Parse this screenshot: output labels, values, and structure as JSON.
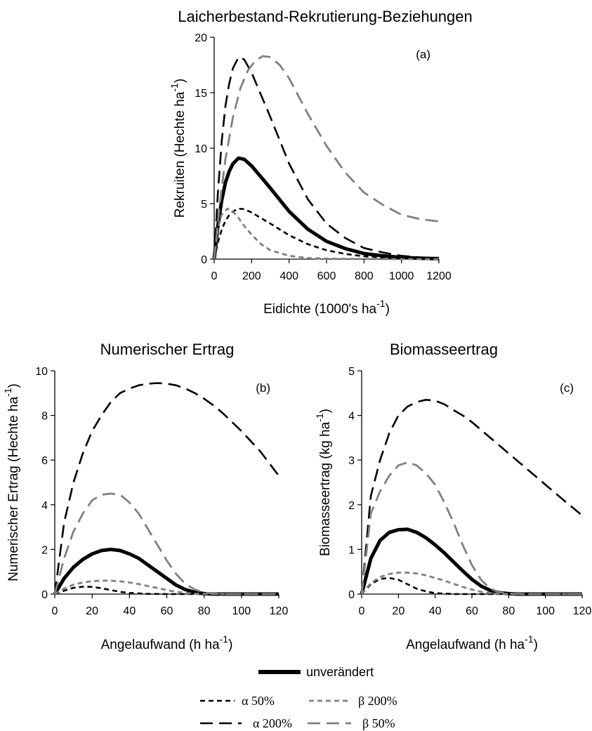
{
  "chart_data": [
    {
      "type": "line",
      "panel_label": "(a)",
      "title": "Laicherbestand-Rekrutierung-Beziehungen",
      "xlabel": "Eidichte (1000's ha",
      "xlabel_sup": "-1",
      "xlabel_end": ")",
      "ylabel": "Rekruiten (Hechte ha",
      "ylabel_sup": "-1",
      "ylabel_end": ")",
      "xlim": [
        0,
        1200
      ],
      "ylim": [
        0,
        20
      ],
      "xticks": [
        0,
        200,
        400,
        600,
        800,
        1000,
        1200
      ],
      "yticks": [
        0,
        5,
        10,
        15,
        20
      ],
      "series": [
        {
          "name": "unverändert",
          "style": "base",
          "x": [
            0,
            20,
            40,
            60,
            80,
            100,
            130,
            160,
            200,
            250,
            300,
            400,
            500,
            600,
            700,
            800,
            900,
            1000,
            1100,
            1200
          ],
          "y": [
            0,
            3.0,
            5.3,
            6.9,
            7.9,
            8.6,
            9.1,
            9.0,
            8.4,
            7.4,
            6.4,
            4.3,
            2.7,
            1.6,
            0.95,
            0.5,
            0.3,
            0.15,
            0.08,
            0.04
          ]
        },
        {
          "name": "α 50%",
          "style": "a50",
          "x": [
            0,
            20,
            40,
            60,
            80,
            100,
            130,
            160,
            200,
            250,
            300,
            400,
            500,
            600,
            700,
            800,
            900,
            1000,
            1100,
            1200
          ],
          "y": [
            0,
            1.5,
            2.65,
            3.45,
            3.95,
            4.3,
            4.55,
            4.5,
            4.2,
            3.7,
            3.2,
            2.15,
            1.35,
            0.8,
            0.47,
            0.25,
            0.15,
            0.08,
            0.04,
            0.02
          ]
        },
        {
          "name": "α 200%",
          "style": "a200",
          "x": [
            0,
            20,
            40,
            60,
            80,
            100,
            130,
            160,
            200,
            250,
            300,
            400,
            500,
            600,
            700,
            800,
            900,
            1000,
            1100,
            1200
          ],
          "y": [
            0,
            6.0,
            10.6,
            13.8,
            15.8,
            17.2,
            18.2,
            18.0,
            16.8,
            14.8,
            12.8,
            8.6,
            5.4,
            3.2,
            1.9,
            1.0,
            0.6,
            0.3,
            0.16,
            0.08
          ]
        },
        {
          "name": "β 200%",
          "style": "b200",
          "x": [
            0,
            20,
            40,
            70,
            100,
            130,
            160,
            200,
            250,
            300,
            400,
            500,
            600,
            800,
            1000,
            1200
          ],
          "y": [
            0,
            2.8,
            4.0,
            4.55,
            4.3,
            3.7,
            3.0,
            2.2,
            1.35,
            0.8,
            0.3,
            0.1,
            0.04,
            0.01,
            0,
            0
          ]
        },
        {
          "name": "β 50%",
          "style": "b50",
          "x": [
            0,
            30,
            60,
            100,
            140,
            180,
            220,
            260,
            300,
            350,
            400,
            500,
            600,
            700,
            800,
            900,
            1000,
            1100,
            1200
          ],
          "y": [
            0,
            5.0,
            9.0,
            12.8,
            15.4,
            17.0,
            17.9,
            18.3,
            18.2,
            17.5,
            16.3,
            13.1,
            10.2,
            7.8,
            6.0,
            4.9,
            4.0,
            3.6,
            3.4
          ]
        }
      ]
    },
    {
      "type": "line",
      "panel_label": "(b)",
      "title": "Numerischer Ertrag",
      "xlabel": "Angelaufwand (h ha",
      "xlabel_sup": "-1",
      "xlabel_end": ")",
      "ylabel": "Numerischer Ertrag (Hechte ha",
      "ylabel_sup": "-1",
      "ylabel_end": ")",
      "xlim": [
        0,
        120
      ],
      "ylim": [
        0,
        10
      ],
      "xticks": [
        0,
        20,
        40,
        60,
        80,
        100,
        120
      ],
      "yticks": [
        0,
        2,
        4,
        6,
        8,
        10
      ],
      "series": [
        {
          "name": "unverändert",
          "style": "base",
          "x": [
            0,
            5,
            10,
            15,
            20,
            25,
            30,
            35,
            40,
            45,
            50,
            55,
            60,
            65,
            70,
            75,
            80,
            85,
            90,
            100,
            110,
            120
          ],
          "y": [
            0,
            0.7,
            1.2,
            1.55,
            1.8,
            1.95,
            2.0,
            1.95,
            1.8,
            1.6,
            1.3,
            1.0,
            0.7,
            0.4,
            0.2,
            0.08,
            0.02,
            0,
            0,
            0,
            0,
            0
          ]
        },
        {
          "name": "α 50%",
          "style": "a50",
          "x": [
            0,
            5,
            10,
            15,
            20,
            25,
            30,
            35,
            40,
            50,
            60,
            80,
            100,
            120
          ],
          "y": [
            0,
            0.15,
            0.28,
            0.33,
            0.32,
            0.26,
            0.18,
            0.1,
            0.05,
            0.01,
            0,
            0,
            0,
            0
          ]
        },
        {
          "name": "α 200%",
          "style": "a200",
          "x": [
            0,
            5,
            10,
            15,
            20,
            25,
            30,
            35,
            40,
            45,
            50,
            55,
            60,
            65,
            70,
            75,
            80,
            85,
            90,
            95,
            100,
            110,
            120
          ],
          "y": [
            0,
            3.2,
            5.0,
            6.3,
            7.3,
            8.0,
            8.6,
            9.0,
            9.2,
            9.35,
            9.42,
            9.45,
            9.42,
            9.35,
            9.2,
            9.0,
            8.75,
            8.45,
            8.1,
            7.7,
            7.3,
            6.4,
            5.3
          ]
        },
        {
          "name": "β 200%",
          "style": "b200",
          "x": [
            0,
            5,
            10,
            15,
            20,
            25,
            30,
            35,
            40,
            45,
            50,
            55,
            60,
            65,
            70,
            75,
            80,
            90,
            100,
            120
          ],
          "y": [
            0,
            0.25,
            0.42,
            0.52,
            0.58,
            0.6,
            0.6,
            0.57,
            0.52,
            0.45,
            0.36,
            0.27,
            0.18,
            0.1,
            0.05,
            0.02,
            0.01,
            0,
            0,
            0
          ]
        },
        {
          "name": "β 50%",
          "style": "b50",
          "x": [
            0,
            5,
            10,
            15,
            20,
            25,
            30,
            35,
            40,
            45,
            50,
            55,
            60,
            65,
            70,
            75,
            80,
            85,
            90,
            100,
            120
          ],
          "y": [
            0,
            1.6,
            2.8,
            3.6,
            4.2,
            4.45,
            4.5,
            4.45,
            4.1,
            3.6,
            2.9,
            2.2,
            1.5,
            0.9,
            0.45,
            0.2,
            0.07,
            0.02,
            0,
            0,
            0
          ]
        }
      ]
    },
    {
      "type": "line",
      "panel_label": "(c)",
      "title": "Biomasseertrag",
      "xlabel": "Angelaufwand (h ha",
      "xlabel_sup": "-1",
      "xlabel_end": ")",
      "ylabel": "Biomasseertrag (kg ha",
      "ylabel_sup": "-1",
      "ylabel_end": ")",
      "xlim": [
        0,
        120
      ],
      "ylim": [
        0,
        5
      ],
      "xticks": [
        0,
        20,
        40,
        60,
        80,
        100,
        120
      ],
      "yticks": [
        0,
        1,
        2,
        3,
        4,
        5
      ],
      "series": [
        {
          "name": "unverändert",
          "style": "base",
          "x": [
            0,
            5,
            10,
            15,
            20,
            25,
            30,
            35,
            40,
            45,
            50,
            55,
            60,
            65,
            70,
            75,
            80,
            85,
            90,
            100,
            120
          ],
          "y": [
            0,
            0.8,
            1.2,
            1.38,
            1.44,
            1.45,
            1.38,
            1.26,
            1.1,
            0.92,
            0.72,
            0.52,
            0.33,
            0.18,
            0.08,
            0.03,
            0.01,
            0,
            0,
            0,
            0
          ]
        },
        {
          "name": "α 50%",
          "style": "a50",
          "x": [
            0,
            5,
            10,
            15,
            20,
            25,
            30,
            35,
            40,
            50,
            60,
            80,
            100,
            120
          ],
          "y": [
            0,
            0.22,
            0.34,
            0.36,
            0.32,
            0.22,
            0.12,
            0.06,
            0.02,
            0,
            0,
            0,
            0,
            0
          ]
        },
        {
          "name": "α 200%",
          "style": "a200",
          "x": [
            0,
            5,
            10,
            15,
            20,
            25,
            30,
            35,
            40,
            45,
            50,
            55,
            60,
            70,
            80,
            90,
            100,
            110,
            120
          ],
          "y": [
            0,
            2.2,
            3.0,
            3.6,
            4.0,
            4.2,
            4.3,
            4.35,
            4.33,
            4.25,
            4.12,
            4.0,
            3.85,
            3.5,
            3.15,
            2.8,
            2.45,
            2.1,
            1.76
          ]
        },
        {
          "name": "β 200%",
          "style": "b200",
          "x": [
            0,
            5,
            10,
            15,
            20,
            25,
            30,
            35,
            40,
            45,
            50,
            55,
            60,
            65,
            70,
            80,
            90,
            100,
            120
          ],
          "y": [
            0,
            0.25,
            0.38,
            0.45,
            0.48,
            0.48,
            0.46,
            0.42,
            0.36,
            0.3,
            0.23,
            0.16,
            0.1,
            0.05,
            0.02,
            0,
            0,
            0,
            0
          ]
        },
        {
          "name": "β 50%",
          "style": "b50",
          "x": [
            0,
            5,
            10,
            15,
            20,
            25,
            30,
            35,
            40,
            45,
            50,
            55,
            60,
            65,
            70,
            75,
            80,
            90,
            100,
            120
          ],
          "y": [
            0,
            1.8,
            2.3,
            2.65,
            2.88,
            2.95,
            2.88,
            2.7,
            2.45,
            2.05,
            1.6,
            1.1,
            0.65,
            0.32,
            0.12,
            0.04,
            0.01,
            0,
            0,
            0
          ]
        }
      ]
    }
  ],
  "legend": [
    {
      "style": "base",
      "label": "unverändert"
    },
    {
      "style": "a50",
      "label": "α 50%"
    },
    {
      "style": "b200",
      "label": "β 200%"
    },
    {
      "style": "a200",
      "label": "α 200%"
    },
    {
      "style": "b50",
      "label": "β 50%"
    }
  ],
  "styles": {
    "base": {
      "color": "#000000",
      "dash": "none"
    },
    "a50": {
      "color": "#000000",
      "dash": "short"
    },
    "a200": {
      "color": "#000000",
      "dash": "long"
    },
    "b200": {
      "color": "#808080",
      "dash": "short"
    },
    "b50": {
      "color": "#808080",
      "dash": "long"
    }
  }
}
